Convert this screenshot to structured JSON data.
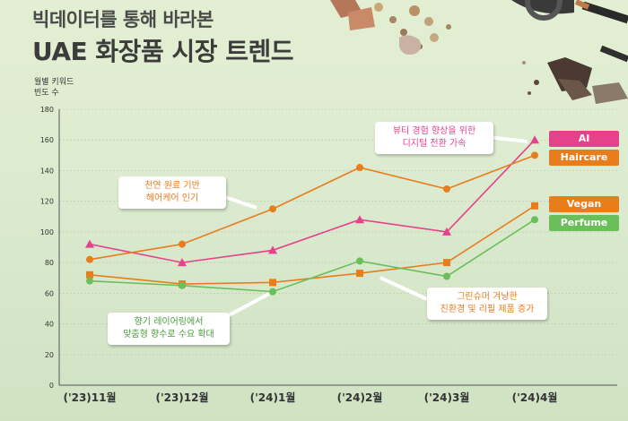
{
  "title": {
    "sub": "빅데이터를 통해 바라본",
    "main": "UAE 화장품 시장 트렌드"
  },
  "y_axis_label": [
    "월별 키워드",
    "빈도 수"
  ],
  "colors": {
    "ai": "#e6428c",
    "haircare": "#e87d1e",
    "vegan": "#e87d1e",
    "perfume": "#6abf5a"
  },
  "annotations": [
    {
      "id": "haircare-note",
      "lines": [
        "천연 원료 기반",
        "헤어케어 인기"
      ],
      "color": "#e87d1e"
    },
    {
      "id": "ai-note",
      "lines": [
        "뷰티 경험 향상을 위한",
        "디지털 전환 가속"
      ],
      "color": "#e6428c"
    },
    {
      "id": "perfume-note",
      "lines": [
        "향기 레이어링에서",
        "맞춤형 향수로 수요 확대"
      ],
      "color": "#4e9b3f"
    },
    {
      "id": "vegan-note",
      "lines": [
        "그린슈머 겨냥한",
        "친환경 및 리필 제품 증가"
      ],
      "color": "#e87d1e"
    }
  ],
  "chart_data": {
    "type": "line",
    "categories": [
      "('23)11월",
      "('23)12월",
      "('24)1월",
      "('24)2월",
      "('24)3월",
      "('24)4월"
    ],
    "ylim": [
      0,
      180
    ],
    "yticks": [
      0,
      20,
      40,
      60,
      80,
      100,
      120,
      140,
      160,
      180
    ],
    "grid": true,
    "legend_position": "right",
    "series": [
      {
        "name": "AI",
        "color": "#e6428c",
        "marker": "triangle",
        "values": [
          92,
          80,
          88,
          108,
          100,
          160
        ]
      },
      {
        "name": "Haircare",
        "color": "#e87d1e",
        "marker": "circle",
        "values": [
          82,
          92,
          115,
          142,
          128,
          150
        ]
      },
      {
        "name": "Vegan",
        "color": "#e87d1e",
        "marker": "square",
        "values": [
          72,
          66,
          67,
          73,
          80,
          117
        ]
      },
      {
        "name": "Perfume",
        "color": "#6abf5a",
        "marker": "circle",
        "values": [
          68,
          65,
          61,
          81,
          71,
          108
        ]
      }
    ]
  }
}
